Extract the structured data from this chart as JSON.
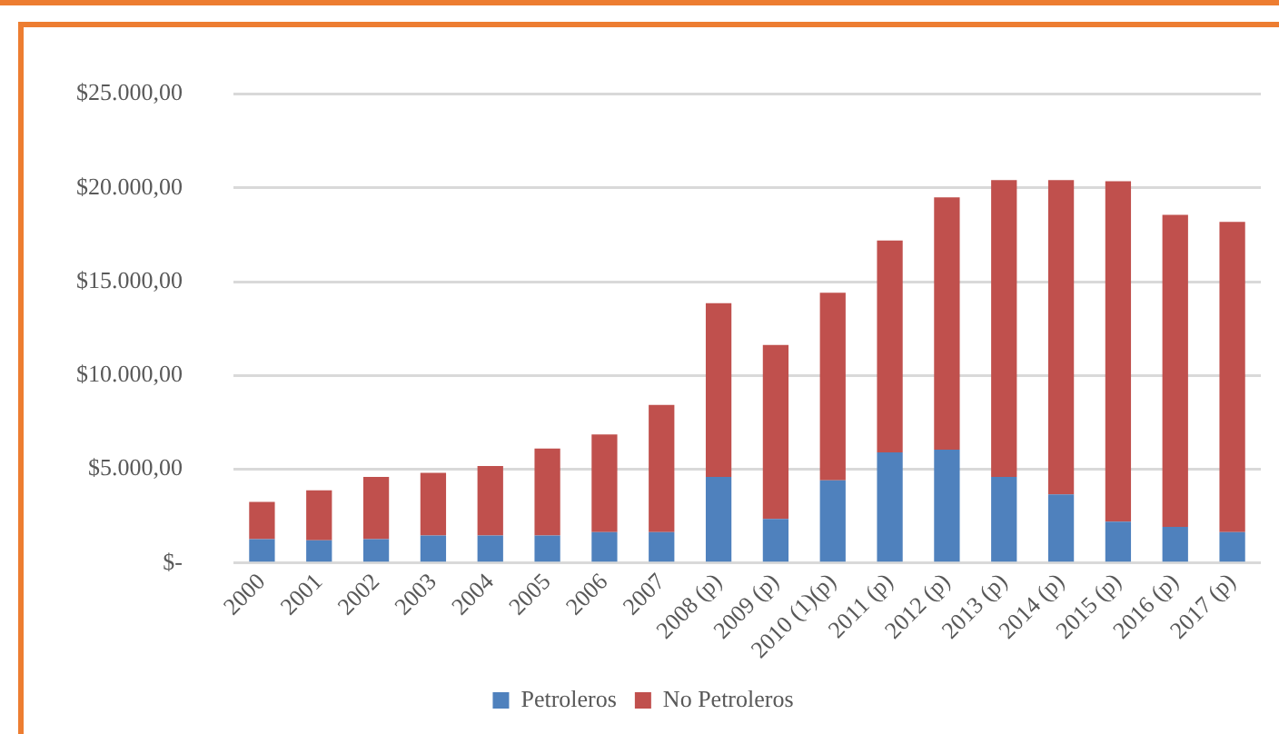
{
  "chart_data": {
    "type": "bar",
    "stacked": true,
    "categories": [
      "2000",
      "2001",
      "2002",
      "2003",
      "2004",
      "2005",
      "2006",
      "2007",
      "2008 (p)",
      "2009 (p)",
      "2010 (1)(p)",
      "2011 (p)",
      "2012 (p)",
      "2013 (p)",
      "2014 (p)",
      "2015 (p)",
      "2016 (p)",
      "2017 (p)"
    ],
    "series": [
      {
        "name": "Petroleros",
        "color": "#4f81bd",
        "values": [
          1270,
          1210,
          1270,
          1460,
          1460,
          1460,
          1640,
          1640,
          4590,
          2350,
          4400,
          5890,
          6040,
          4590,
          3660,
          2200,
          1920,
          1640
        ]
      },
      {
        "name": "No Petroleros",
        "color": "#c0504d",
        "values": [
          1980,
          2660,
          3320,
          3340,
          3710,
          4640,
          5210,
          6790,
          9260,
          9270,
          10010,
          11300,
          13450,
          15830,
          16760,
          18150,
          16640,
          16550
        ]
      }
    ],
    "ylim": [
      0,
      25000
    ],
    "yticks": [
      {
        "value": 0,
        "label": "$-"
      },
      {
        "value": 5000,
        "label": "$5.000,00"
      },
      {
        "value": 10000,
        "label": "$10.000,00"
      },
      {
        "value": 15000,
        "label": "$15.000,00"
      },
      {
        "value": 20000,
        "label": "$20.000,00"
      },
      {
        "value": 25000,
        "label": "$25.000,00"
      }
    ],
    "grid": "y",
    "legend": "bottom"
  }
}
